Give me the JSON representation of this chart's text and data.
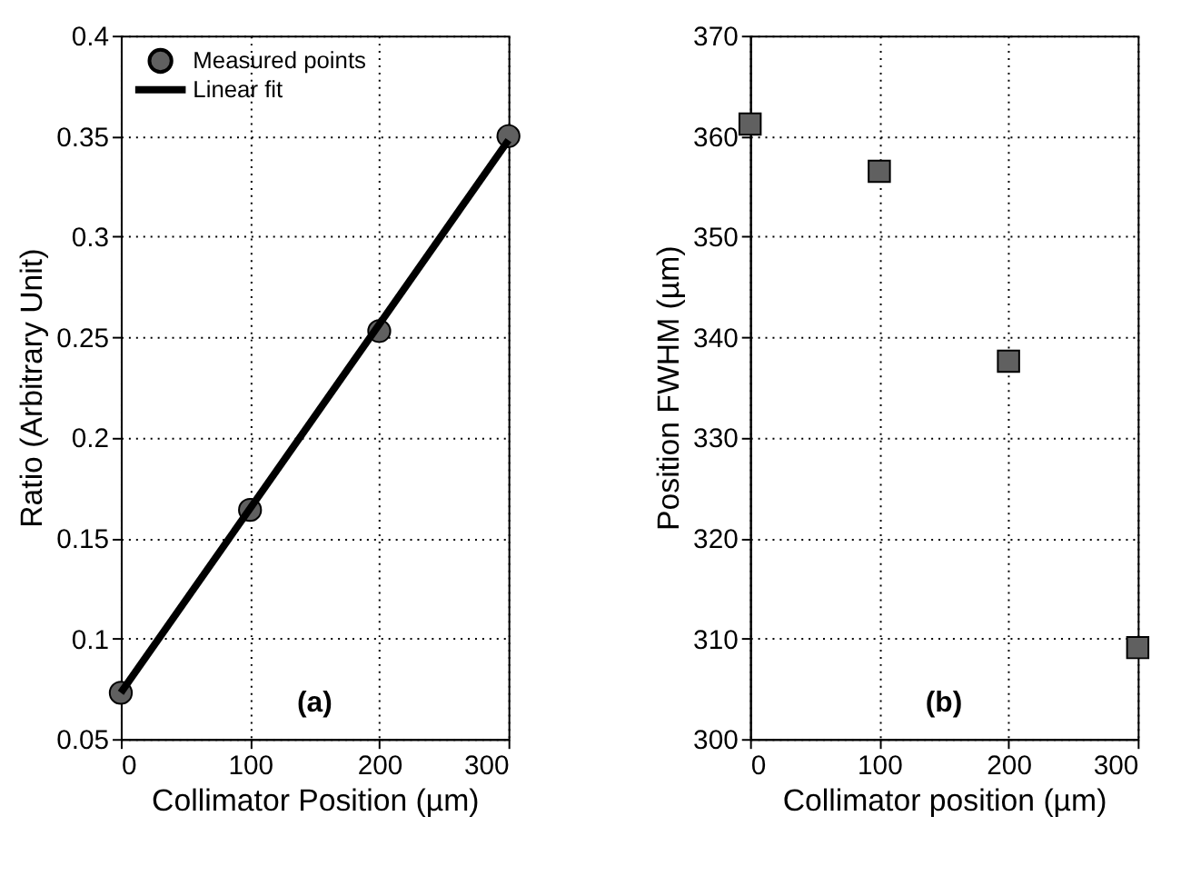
{
  "chart_data": [
    {
      "type": "scatter",
      "xlabel": "Collimator Position (µm)",
      "ylabel": "Ratio (Arbitrary Unit)",
      "annotations": [
        "(a)"
      ],
      "x": [
        0,
        100,
        200,
        300
      ],
      "series": [
        {
          "name": "Measured points",
          "marker": "circle",
          "color": "#606060",
          "values": [
            0.073,
            0.164,
            0.253,
            0.35
          ]
        },
        {
          "name": "Linear fit",
          "type": "line",
          "line_style": "solid",
          "color": "#000000",
          "x": [
            0,
            300
          ],
          "values": [
            0.073,
            0.348
          ]
        }
      ],
      "xlim": [
        0,
        300
      ],
      "xticks": [
        0,
        100,
        200,
        300
      ],
      "ylim": [
        0.05,
        0.4
      ],
      "yticks": [
        0.05,
        0.1,
        0.15,
        0.2,
        0.25,
        0.3,
        0.35,
        0.4
      ],
      "grid": true,
      "legend": "top left"
    },
    {
      "type": "scatter",
      "xlabel": "Collimator position (µm)",
      "ylabel": "Position FWHM (µm)",
      "annotations": [
        "(b)"
      ],
      "x": [
        0,
        100,
        200,
        300
      ],
      "series": [
        {
          "marker": "square",
          "color": "#606060",
          "values": [
            361.2,
            356.5,
            337.6,
            309.1
          ]
        }
      ],
      "xlim": [
        0,
        300
      ],
      "xticks": [
        0,
        100,
        200,
        300
      ],
      "ylim": [
        300,
        370
      ],
      "yticks": [
        300,
        310,
        320,
        330,
        340,
        350,
        360,
        370
      ],
      "grid": true,
      "legend": false
    }
  ]
}
